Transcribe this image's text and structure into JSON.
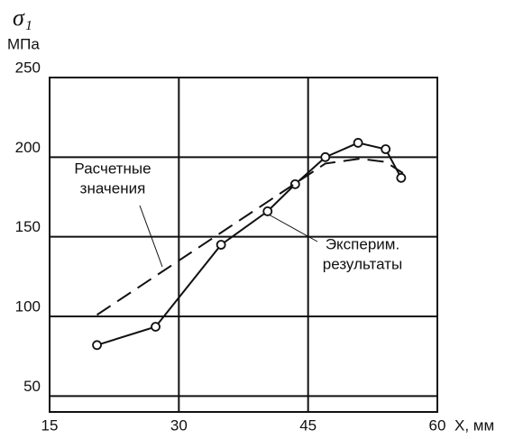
{
  "chart_data": {
    "type": "line",
    "y_label": "σ₁",
    "y_unit": "МПа",
    "x_label": "X, мм",
    "xlim": [
      15,
      60
    ],
    "xticks": [
      15,
      30,
      45,
      60
    ],
    "ylim": [
      40,
      250
    ],
    "yticks": [
      50,
      100,
      150,
      200,
      250
    ],
    "grid": true,
    "series": [
      {
        "x": [
          20.5,
          27.3,
          34.9,
          40.3,
          43.5,
          47,
          50.8,
          54,
          55.8
        ],
        "values": [
          82,
          93.5,
          145,
          166,
          183,
          200,
          209,
          205,
          187
        ],
        "color": "#111111",
        "style": "solid",
        "markers": true
      },
      {
        "x": [
          20.5,
          47,
          51,
          54,
          56
        ],
        "values": [
          101,
          196,
          199,
          197,
          190
        ],
        "color": "#111111",
        "style": "dashed",
        "markers": false
      }
    ],
    "annotations": [
      {
        "lines": [
          "Расчетные",
          "значения"
        ]
      },
      {
        "lines": [
          "Эксперим.",
          "результаты"
        ]
      }
    ]
  }
}
